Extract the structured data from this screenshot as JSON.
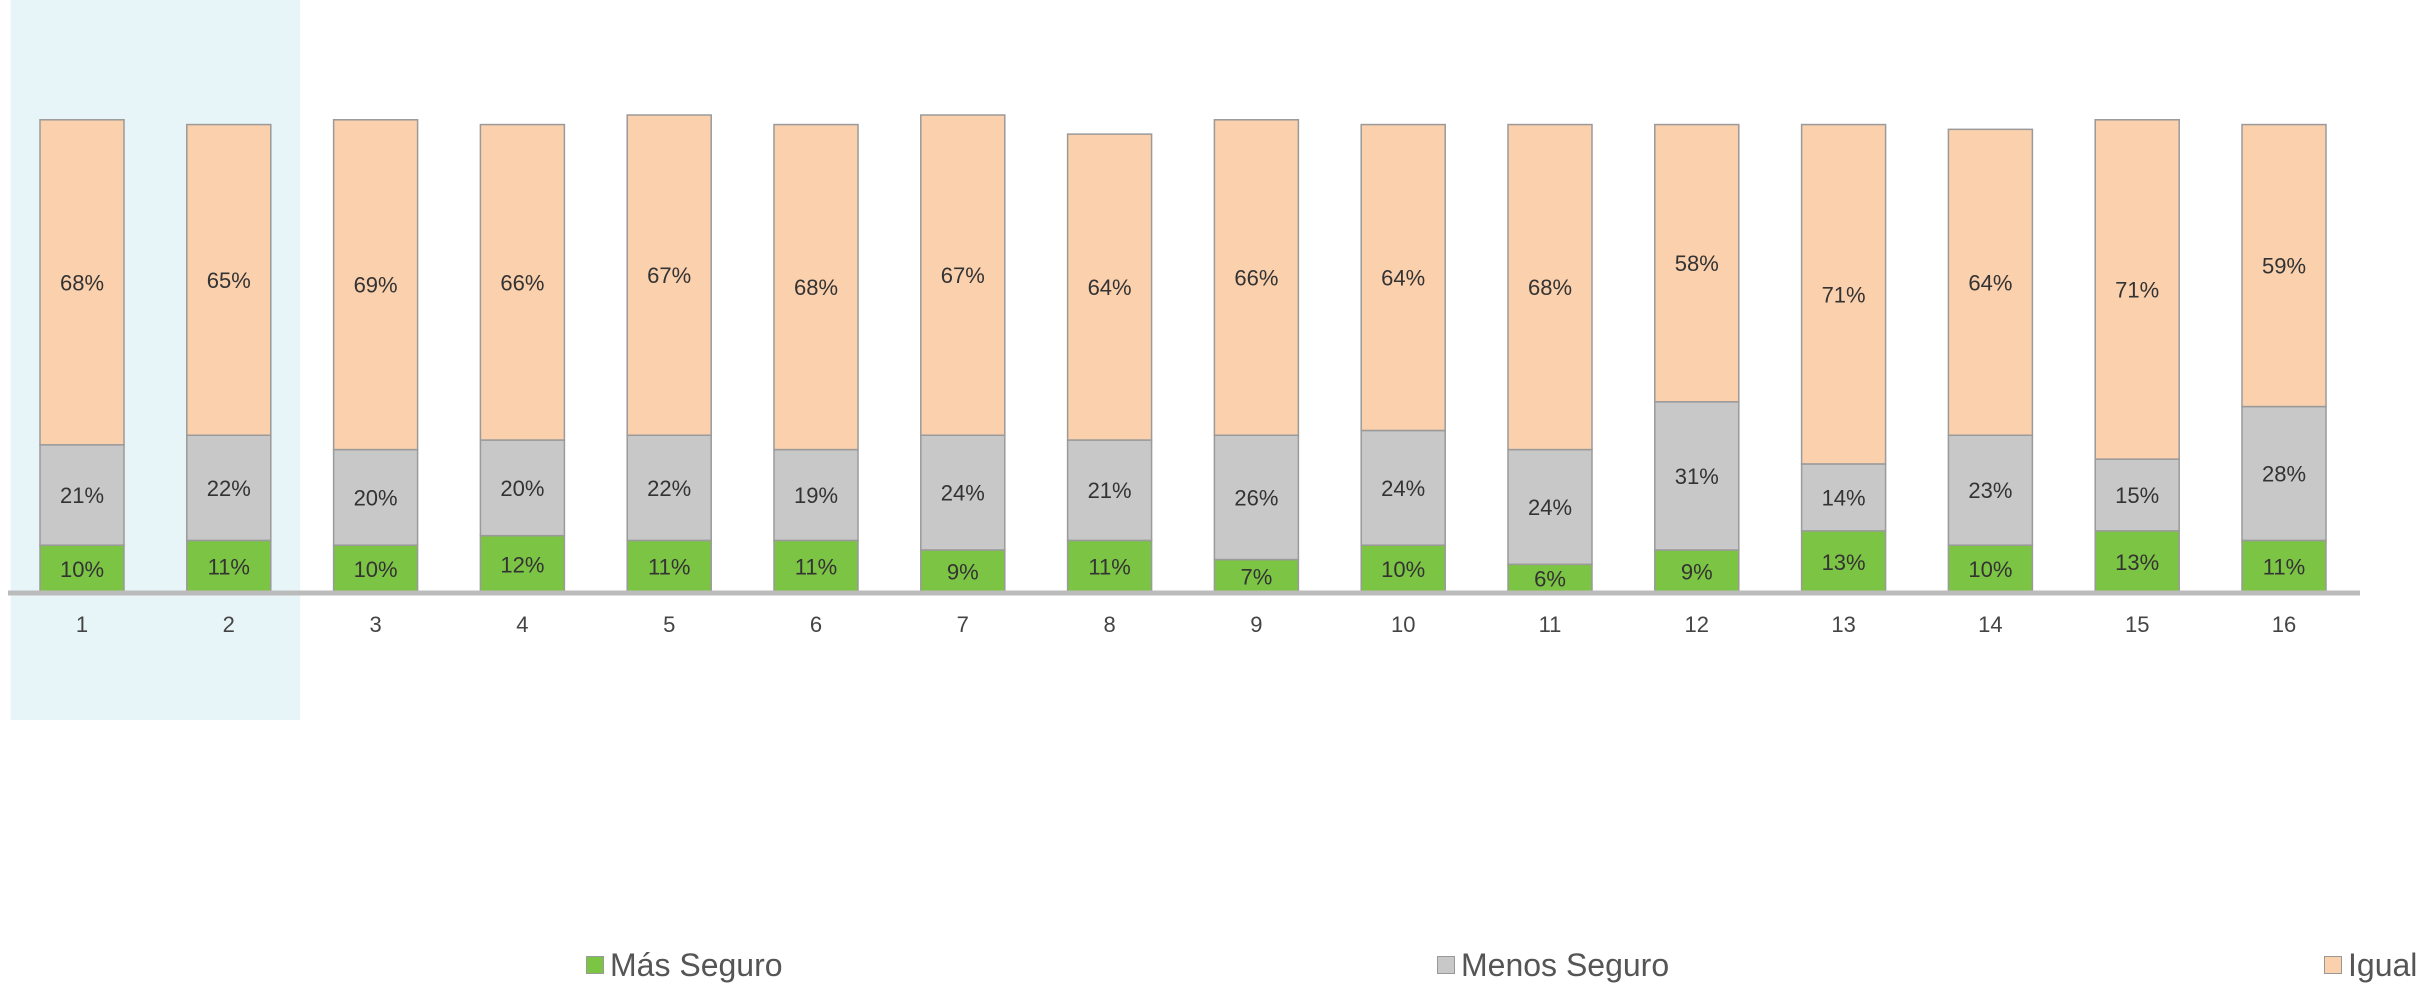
{
  "chart_data": {
    "type": "bar",
    "stacked": true,
    "normalized_percent": true,
    "categories": [
      "1",
      "2",
      "3",
      "4",
      "5",
      "6",
      "7",
      "8",
      "9",
      "10",
      "11",
      "12",
      "13",
      "14",
      "15",
      "16"
    ],
    "series": [
      {
        "name": "Más Seguro",
        "color": "#7cc444",
        "values": [
          10,
          11,
          10,
          12,
          11,
          11,
          9,
          11,
          7,
          10,
          6,
          9,
          13,
          10,
          13,
          11
        ],
        "labels": [
          "10%",
          "11%",
          "10%",
          "12%",
          "11%",
          "11%",
          "9%",
          "11%",
          "7%",
          "10%",
          "6%",
          "9%",
          "13%",
          "10%",
          "13%",
          "11%"
        ]
      },
      {
        "name": "Menos Seguro",
        "color": "#c8c8c8",
        "values": [
          21,
          22,
          20,
          20,
          22,
          19,
          24,
          21,
          26,
          24,
          24,
          31,
          14,
          23,
          15,
          28
        ],
        "labels": [
          "21%",
          "22%",
          "20%",
          "20%",
          "22%",
          "19%",
          "24%",
          "21%",
          "26%",
          "24%",
          "24%",
          "31%",
          "14%",
          "23%",
          "15%",
          "28%"
        ]
      },
      {
        "name": "Igual",
        "color": "#fbd0ad",
        "values": [
          68,
          65,
          69,
          66,
          67,
          68,
          67,
          64,
          66,
          64,
          68,
          58,
          71,
          64,
          71,
          59
        ],
        "labels": [
          "68%",
          "65%",
          "69%",
          "66%",
          "67%",
          "68%",
          "67%",
          "64%",
          "66%",
          "64%",
          "68%",
          "58%",
          "71%",
          "64%",
          "71%",
          "59%"
        ]
      }
    ],
    "highlight_categories": [
      "1",
      "2"
    ],
    "highlight_color": "#e8f5f8",
    "axis_color": "#bbbbbb",
    "bar_border_color": "#9a9a9a",
    "grid": false,
    "legend_position": "bottom"
  }
}
